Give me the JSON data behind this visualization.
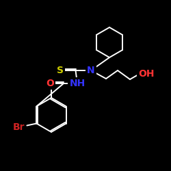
{
  "bg_color": "#000000",
  "bond_color": "#ffffff",
  "atom_colors": {
    "S": "#cccc00",
    "N": "#3333ff",
    "O": "#ff3333",
    "Br": "#cc2222",
    "C": "#ffffff"
  },
  "font_size": 9,
  "bond_width": 1.4,
  "figsize": [
    2.5,
    2.5
  ],
  "dpi": 100
}
